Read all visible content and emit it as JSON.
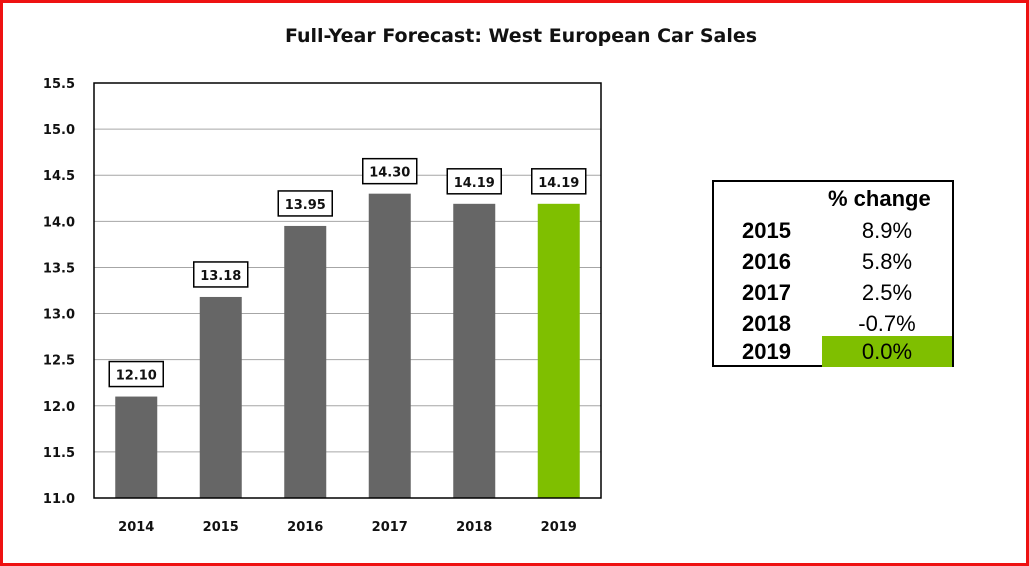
{
  "colors": {
    "bar": "#666666",
    "highlight": "#7fbf00",
    "frame": "#ee1111"
  },
  "chart_data": {
    "type": "bar",
    "title": "Full-Year Forecast: West European Car Sales",
    "xlabel": "",
    "ylabel": "",
    "categories": [
      "2014",
      "2015",
      "2016",
      "2017",
      "2018",
      "2019"
    ],
    "values": [
      12.1,
      13.18,
      13.95,
      14.3,
      14.19,
      14.19
    ],
    "data_labels": [
      "12.10",
      "13.18",
      "13.95",
      "14.30",
      "14.19",
      "14.19"
    ],
    "highlight_index": 5,
    "ylim": [
      11.0,
      15.5
    ],
    "yticks": [
      "11.0",
      "11.5",
      "12.0",
      "12.5",
      "13.0",
      "13.5",
      "14.0",
      "14.5",
      "15.0",
      "15.5"
    ],
    "grid": true,
    "legend": "none"
  },
  "change_table": {
    "header": "% change",
    "rows": [
      {
        "year": "2015",
        "value": "8.9%"
      },
      {
        "year": "2016",
        "value": "5.8%"
      },
      {
        "year": "2017",
        "value": "2.5%"
      },
      {
        "year": "2018",
        "value": "-0.7%"
      },
      {
        "year": "2019",
        "value": "0.0%",
        "highlight": true
      }
    ]
  }
}
